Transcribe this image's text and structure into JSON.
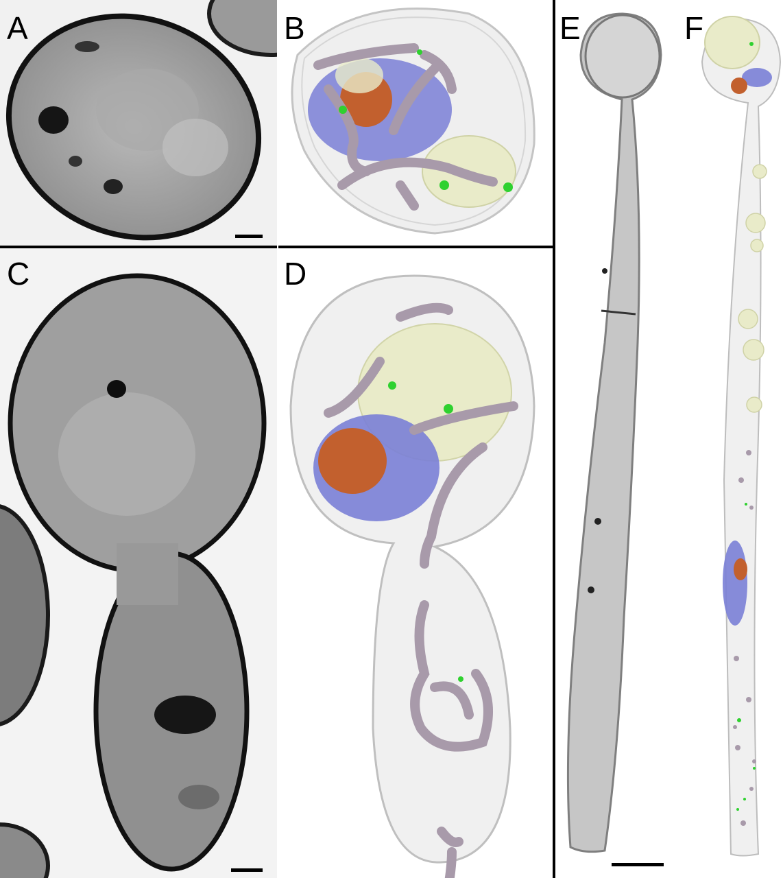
{
  "figure": {
    "panels": [
      {
        "id": "A",
        "label": "A",
        "kind": "electron-tomogram-slice"
      },
      {
        "id": "B",
        "label": "B",
        "kind": "3d-reconstruction"
      },
      {
        "id": "C",
        "label": "C",
        "kind": "electron-tomogram-slice"
      },
      {
        "id": "D",
        "label": "D",
        "kind": "3d-reconstruction"
      },
      {
        "id": "E",
        "label": "E",
        "kind": "electron-tomogram-slice"
      },
      {
        "id": "F",
        "label": "F",
        "kind": "3d-reconstruction"
      }
    ],
    "colors": {
      "background_em": "#e6e6e6",
      "cell_shell": "#c9c9c9",
      "nucleus": "#7a7fd6",
      "nucleolus": "#c2602e",
      "vacuole": "#e9ebc9",
      "mitochondria": "#a89aaa",
      "lipid_bodies": "#2fd12f"
    }
  }
}
